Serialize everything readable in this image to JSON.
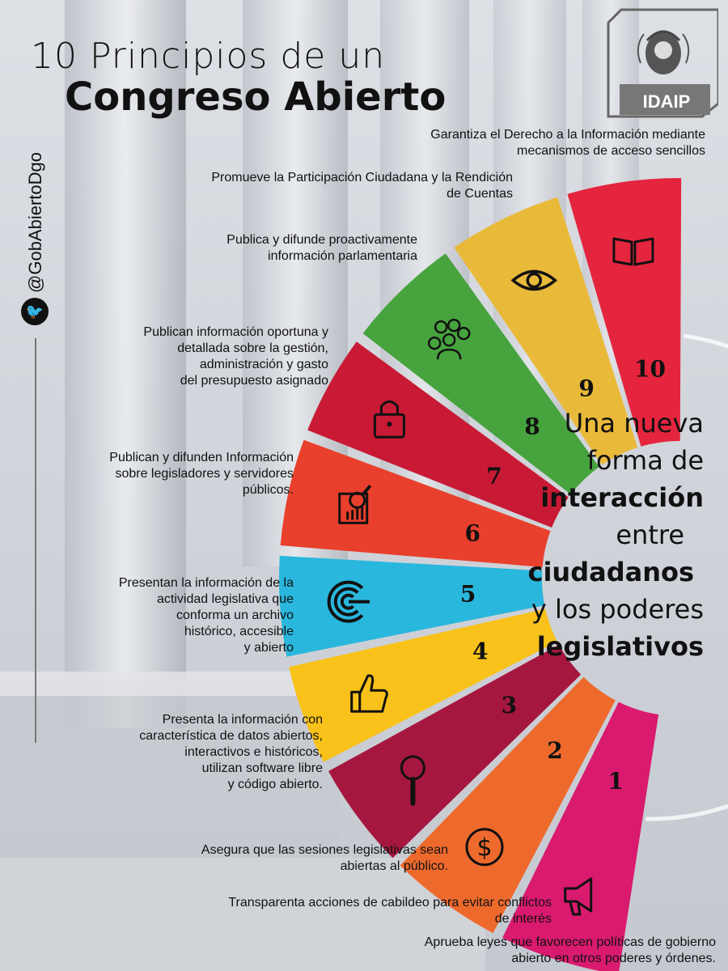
{
  "title": {
    "line1": "10 Principios de un",
    "line2": "Congreso Abierto"
  },
  "social": {
    "handle": "@GobAbiertoDgo",
    "icon": "twitter-bird-icon"
  },
  "logo": {
    "text": "IDAIP"
  },
  "tagline": {
    "l1": "Una nueva",
    "l2": "forma de",
    "l3": "interacción",
    "l4": "entre",
    "l5": "ciudadanos",
    "l6": "y los poderes",
    "l7": "legislativos"
  },
  "principles": [
    {
      "number": "1",
      "color": "#d91a6f",
      "icon": "megaphone-icon",
      "text": [
        "Garantiza el Derecho a la Información mediante",
        "mecanismos de acceso sencillos"
      ]
    },
    {
      "number": "2",
      "color": "#ee6a2c",
      "icon": "dollar-icon",
      "text": [
        "Promueve la Participación Ciudadana y la Rendición",
        "de Cuentas"
      ]
    },
    {
      "number": "3",
      "color": "#a6173f",
      "icon": "magnifier-icon",
      "text": [
        "Publica y difunde proactivamente",
        "información parlamentaria"
      ]
    },
    {
      "number": "4",
      "color": "#f8c21a",
      "icon": "thumbs-up-icon",
      "text": [
        "Publican información oportuna y",
        "detallada sobre la gestión,",
        "administración y gasto",
        "del presupuesto asignado"
      ]
    },
    {
      "number": "5",
      "color": "#2ab7dd",
      "icon": "signal-icon",
      "text": [
        "Publican y difunden Información",
        "sobre legisladores y servidores",
        "públicos."
      ]
    },
    {
      "number": "6",
      "color": "#e9402d",
      "icon": "document-chart-icon",
      "text": [
        "Presentan la información de la",
        "actividad legislativa que",
        "conforma un archivo",
        "histórico, accesible",
        "y abierto"
      ]
    },
    {
      "number": "7",
      "color": "#c81a35",
      "icon": "padlock-icon",
      "text": [
        "Presenta la información con",
        "característica de datos abiertos,",
        "interactivos e históricos,",
        "utilizan software libre",
        "y código abierto."
      ]
    },
    {
      "number": "8",
      "color": "#47a33e",
      "icon": "people-icon",
      "text": [
        "Asegura que las sesiones legislativas sean",
        "abiertas al público."
      ]
    },
    {
      "number": "9",
      "color": "#e9b93a",
      "icon": "eye-icon",
      "text": [
        "Transparenta acciones de cabildeo para evitar conflictos",
        "de interés"
      ]
    },
    {
      "number": "10",
      "color": "#e5253e",
      "icon": "book-icon",
      "text": [
        "Aprueba leyes que favorecen políticas de gobierno",
        "abierto en otros poderes y órdenes."
      ]
    }
  ]
}
